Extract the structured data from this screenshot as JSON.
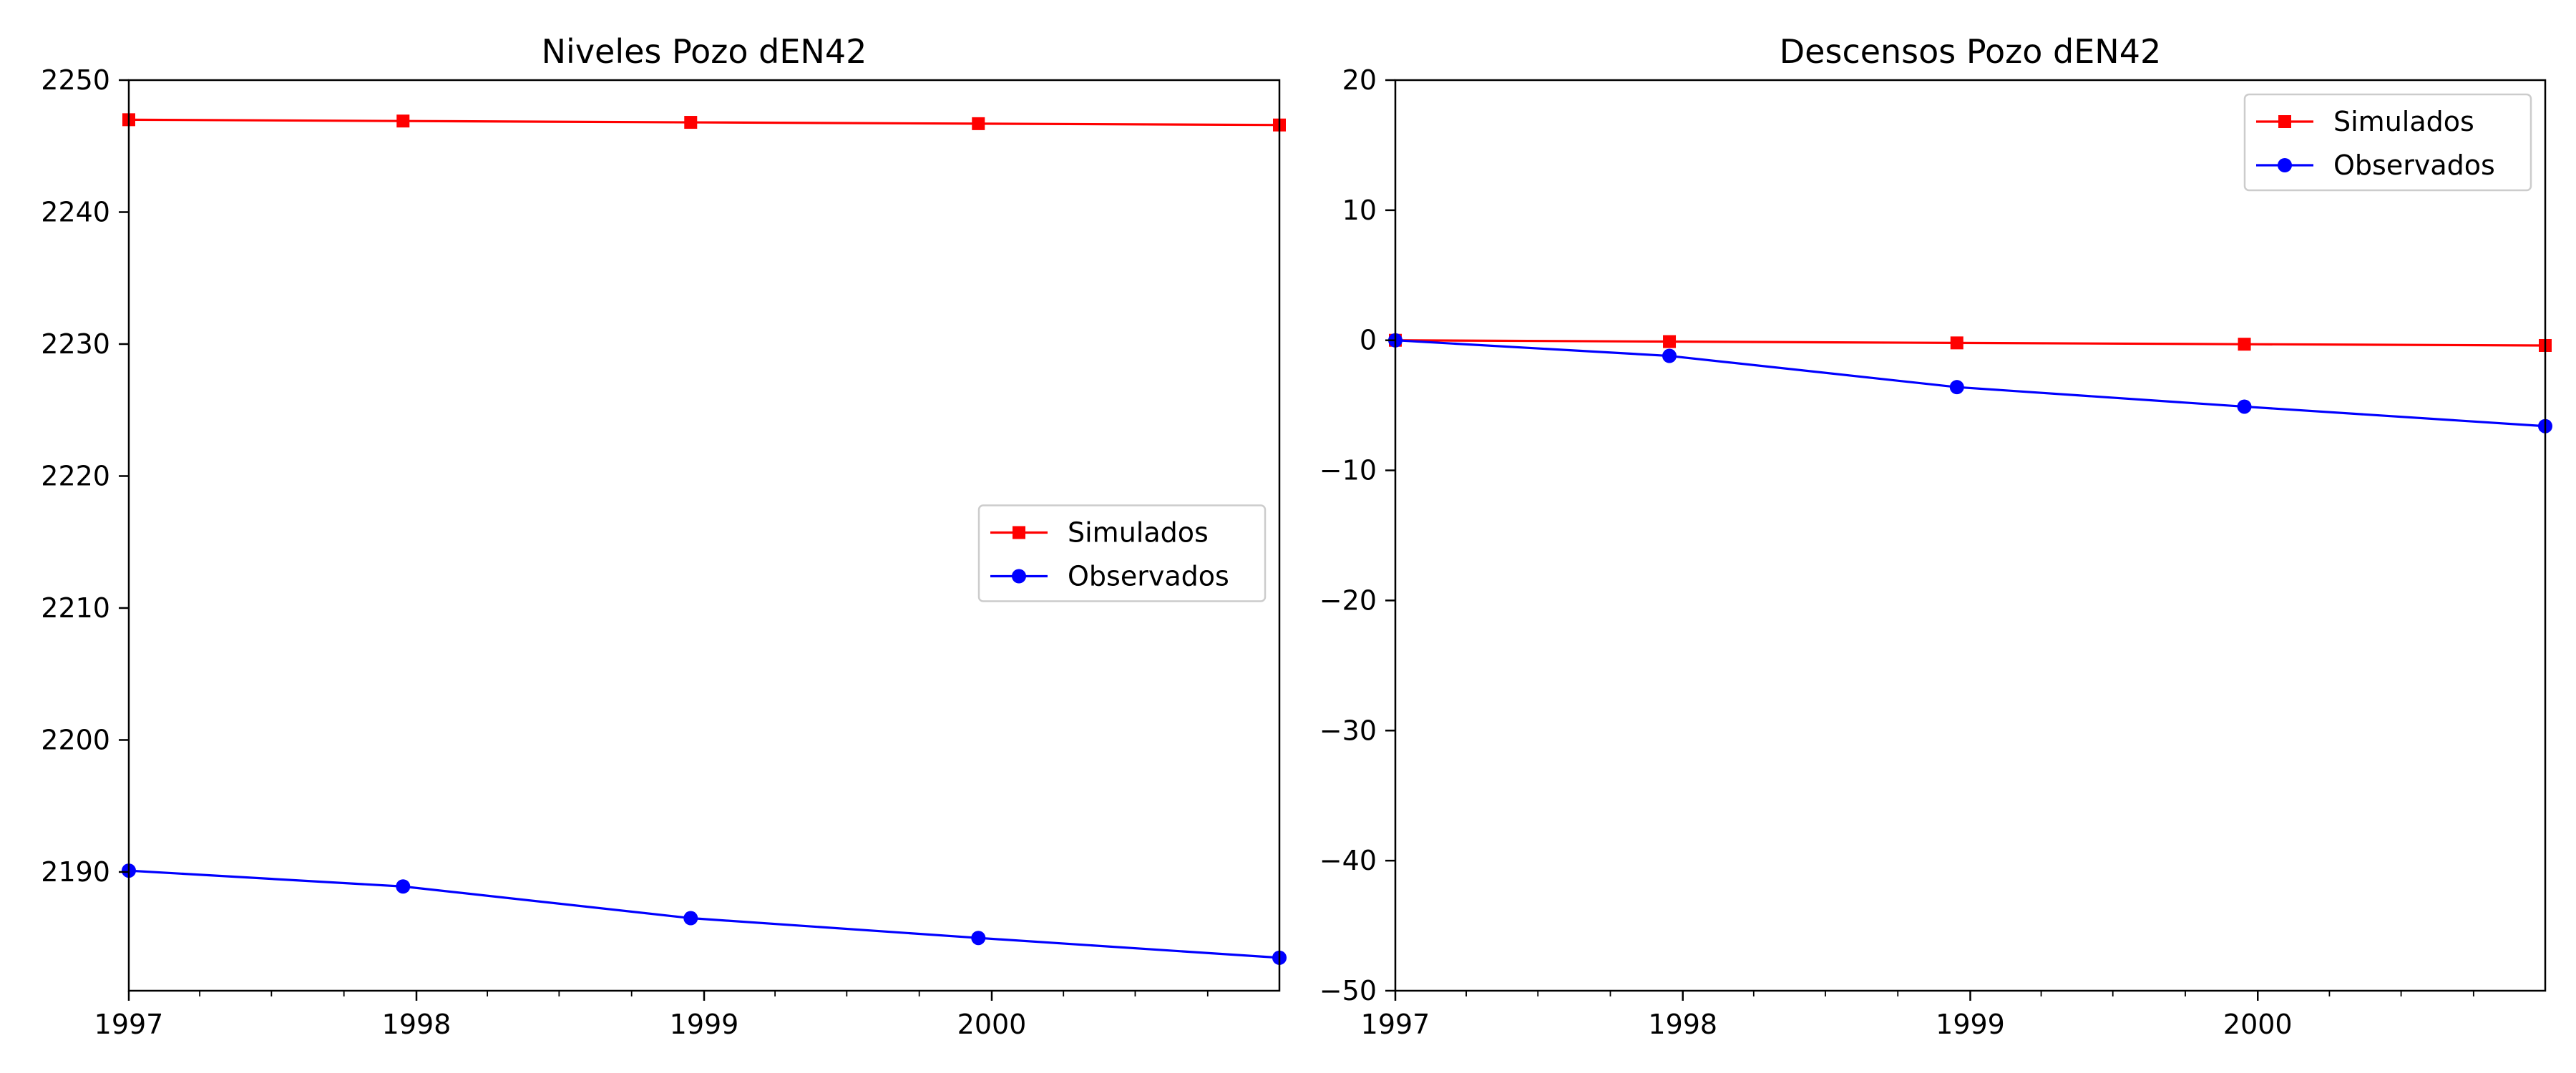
{
  "colors": {
    "simulados": "#ff0000",
    "observados": "#0000ff",
    "axis": "#000000",
    "legend_border": "#cccccc"
  },
  "chart_data": [
    {
      "type": "line",
      "title": "Niveles Pozo dEN42",
      "xlabel": "",
      "ylabel": "",
      "x": [
        "1997-01-01",
        "1997-12-15",
        "1998-12-15",
        "1999-12-15",
        "2000-12-31"
      ],
      "xlim": [
        "1997-01-01",
        "2000-12-31"
      ],
      "ylim": [
        2181,
        2250
      ],
      "x_ticks": [
        "1997",
        "1998",
        "1999",
        "2000"
      ],
      "y_ticks": [
        2190,
        2200,
        2210,
        2220,
        2230,
        2240,
        2250
      ],
      "grid": false,
      "legend": "center-right",
      "series": [
        {
          "name": "Simulados",
          "marker": "square",
          "color": "#ff0000",
          "values": [
            2247.0,
            2246.9,
            2246.8,
            2246.7,
            2246.6
          ]
        },
        {
          "name": "Observados",
          "marker": "circle",
          "color": "#0000ff",
          "values": [
            2190.1,
            2188.9,
            2186.5,
            2185.0,
            2183.5
          ]
        }
      ]
    },
    {
      "type": "line",
      "title": "Descensos Pozo dEN42",
      "xlabel": "",
      "ylabel": "",
      "x": [
        "1997-01-01",
        "1997-12-15",
        "1998-12-15",
        "1999-12-15",
        "2000-12-31"
      ],
      "xlim": [
        "1997-01-01",
        "2000-12-31"
      ],
      "ylim": [
        -50,
        20
      ],
      "x_ticks": [
        "1997",
        "1998",
        "1999",
        "2000"
      ],
      "y_ticks": [
        -50,
        -40,
        -30,
        -20,
        -10,
        0,
        10,
        20
      ],
      "grid": false,
      "legend": "top-right",
      "series": [
        {
          "name": "Simulados",
          "marker": "square",
          "color": "#ff0000",
          "values": [
            0.0,
            -0.1,
            -0.2,
            -0.3,
            -0.4
          ]
        },
        {
          "name": "Observados",
          "marker": "circle",
          "color": "#0000ff",
          "values": [
            0.0,
            -1.2,
            -3.6,
            -5.1,
            -6.6
          ]
        }
      ]
    }
  ]
}
